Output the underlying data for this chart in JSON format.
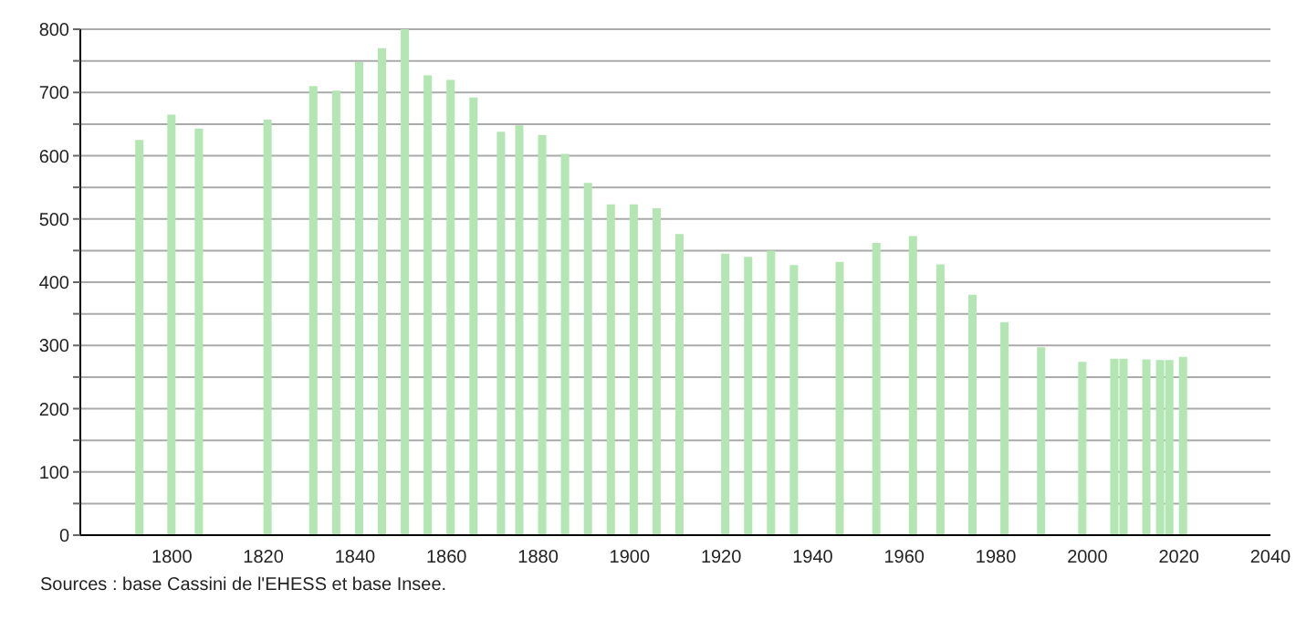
{
  "chart_data": {
    "type": "bar",
    "x": [
      1793,
      1800,
      1806,
      1821,
      1831,
      1836,
      1841,
      1846,
      1851,
      1856,
      1861,
      1866,
      1872,
      1876,
      1881,
      1886,
      1891,
      1896,
      1901,
      1906,
      1911,
      1921,
      1926,
      1931,
      1936,
      1946,
      1954,
      1962,
      1968,
      1975,
      1982,
      1990,
      1999,
      2006,
      2008,
      2013,
      2016,
      2018,
      2021
    ],
    "values": [
      625,
      665,
      643,
      657,
      710,
      703,
      748,
      770,
      800,
      727,
      720,
      692,
      638,
      648,
      633,
      603,
      557,
      523,
      523,
      517,
      476,
      445,
      440,
      450,
      427,
      432,
      462,
      473,
      428,
      380,
      337,
      297,
      274,
      279,
      279,
      278,
      277,
      277,
      282
    ],
    "color": "#b3e6b3",
    "xlim": [
      1780,
      2040
    ],
    "xticks": [
      1800,
      1820,
      1840,
      1860,
      1880,
      1900,
      1920,
      1940,
      1960,
      1980,
      2000,
      2020,
      2040
    ],
    "ylim": [
      0,
      800
    ],
    "yticks": [
      0,
      {
        "value": 50,
        "label": null
      },
      100,
      {
        "value": 150,
        "label": null
      },
      200,
      {
        "value": 250,
        "label": null
      },
      300,
      {
        "value": 350,
        "label": null
      },
      400,
      {
        "value": 450,
        "label": null
      },
      500,
      {
        "value": 550,
        "label": null
      },
      600,
      {
        "value": 650,
        "label": null
      },
      700,
      {
        "value": 750,
        "label": null
      },
      800
    ],
    "grid": "y",
    "annotations": [
      "Sources : base Cassini de l'EHESS et base Insee."
    ]
  }
}
